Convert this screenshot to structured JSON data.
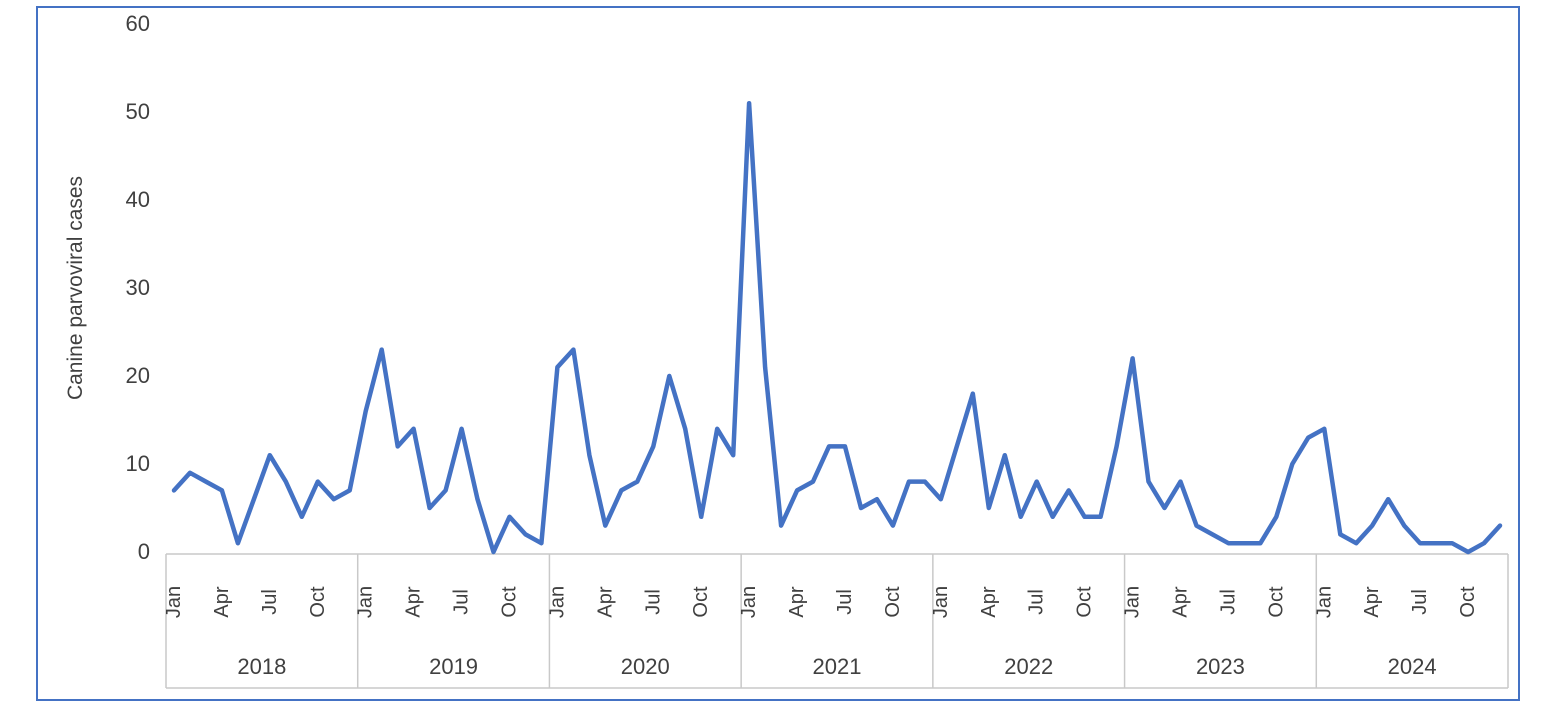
{
  "chart_data": {
    "type": "line",
    "title": "",
    "xlabel": "",
    "ylabel": "Canine parvoviral cases",
    "ylim": [
      0,
      60
    ],
    "yticks": [
      0,
      10,
      20,
      30,
      40,
      50,
      60
    ],
    "grid": "off",
    "legend": "none",
    "x_month_tick_labels": [
      "Jan",
      "Apr",
      "Jul",
      "Oct"
    ],
    "years": [
      "2018",
      "2019",
      "2020",
      "2021",
      "2022",
      "2023",
      "2024"
    ],
    "series": [
      {
        "name": "Canine parvoviral cases",
        "color": "#4472C4",
        "values_by_year": {
          "2018": [
            7,
            9,
            8,
            7,
            1,
            6,
            11,
            8,
            4,
            8,
            6,
            7
          ],
          "2019": [
            16,
            23,
            12,
            14,
            5,
            7,
            14,
            6,
            0,
            4,
            2,
            1
          ],
          "2020": [
            21,
            23,
            11,
            3,
            7,
            8,
            12,
            20,
            14,
            4,
            14,
            11
          ],
          "2021": [
            51,
            21,
            3,
            7,
            8,
            12,
            12,
            5,
            6,
            3,
            8,
            8
          ],
          "2022": [
            6,
            12,
            18,
            5,
            11,
            4,
            8,
            4,
            7,
            4,
            4,
            12
          ],
          "2023": [
            22,
            8,
            5,
            8,
            3,
            2,
            1,
            1,
            1,
            4,
            10,
            13
          ],
          "2024": [
            14,
            2,
            1,
            3,
            6,
            3,
            1,
            1,
            1,
            0,
            1,
            3
          ]
        }
      }
    ],
    "layout_hints": {
      "axis_text_color": "#404040",
      "axis_line_color": "#C9C9C9",
      "frame_border_color": "#4472C4",
      "line_width": 4.5
    }
  }
}
